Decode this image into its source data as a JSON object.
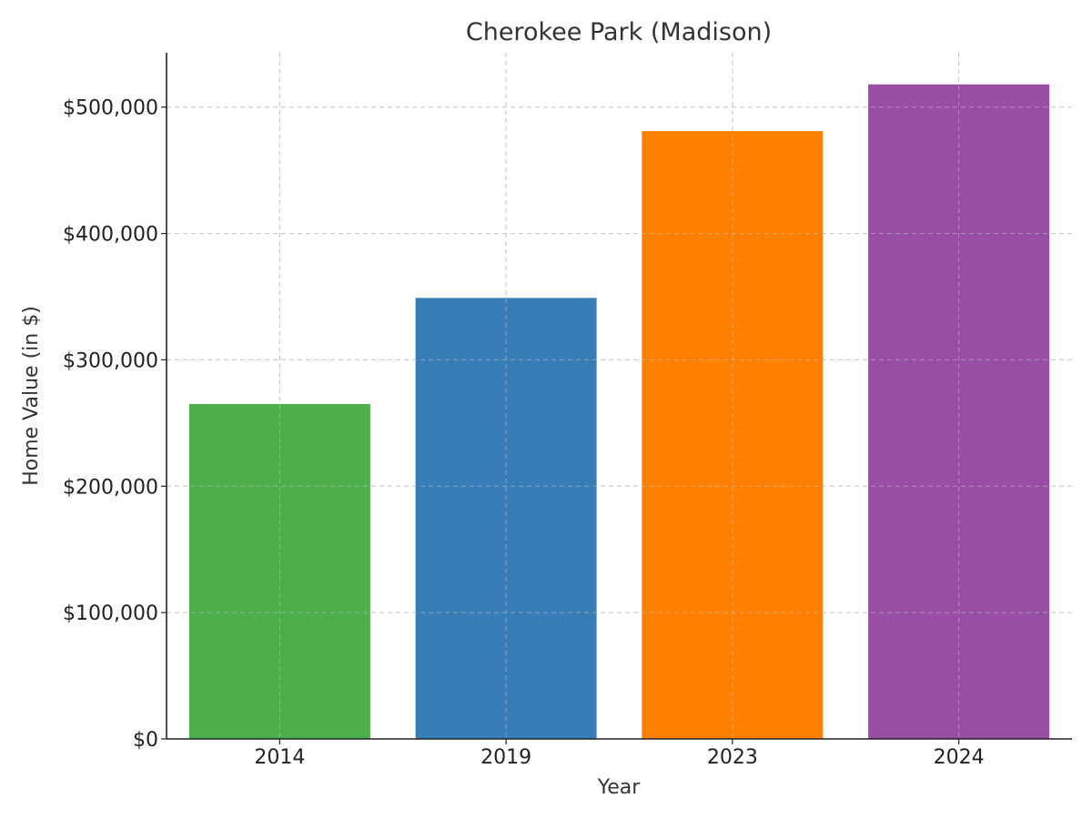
{
  "chart_data": {
    "type": "bar",
    "title": "Cherokee Park (Madison)",
    "xlabel": "Year",
    "ylabel": "Home Value (in $)",
    "categories": [
      "2014",
      "2019",
      "2023",
      "2024"
    ],
    "values": [
      265000,
      349000,
      481000,
      518000
    ],
    "colors": [
      "#4daf4a",
      "#377eb8",
      "#ff7f00",
      "#984ea3"
    ],
    "ylim": [
      0,
      543000
    ],
    "yticks": [
      0,
      100000,
      200000,
      300000,
      400000,
      500000
    ],
    "ytick_labels": [
      "$0",
      "$100,000",
      "$200,000",
      "$300,000",
      "$400,000",
      "$500,000"
    ],
    "grid": true,
    "legend": false
  }
}
